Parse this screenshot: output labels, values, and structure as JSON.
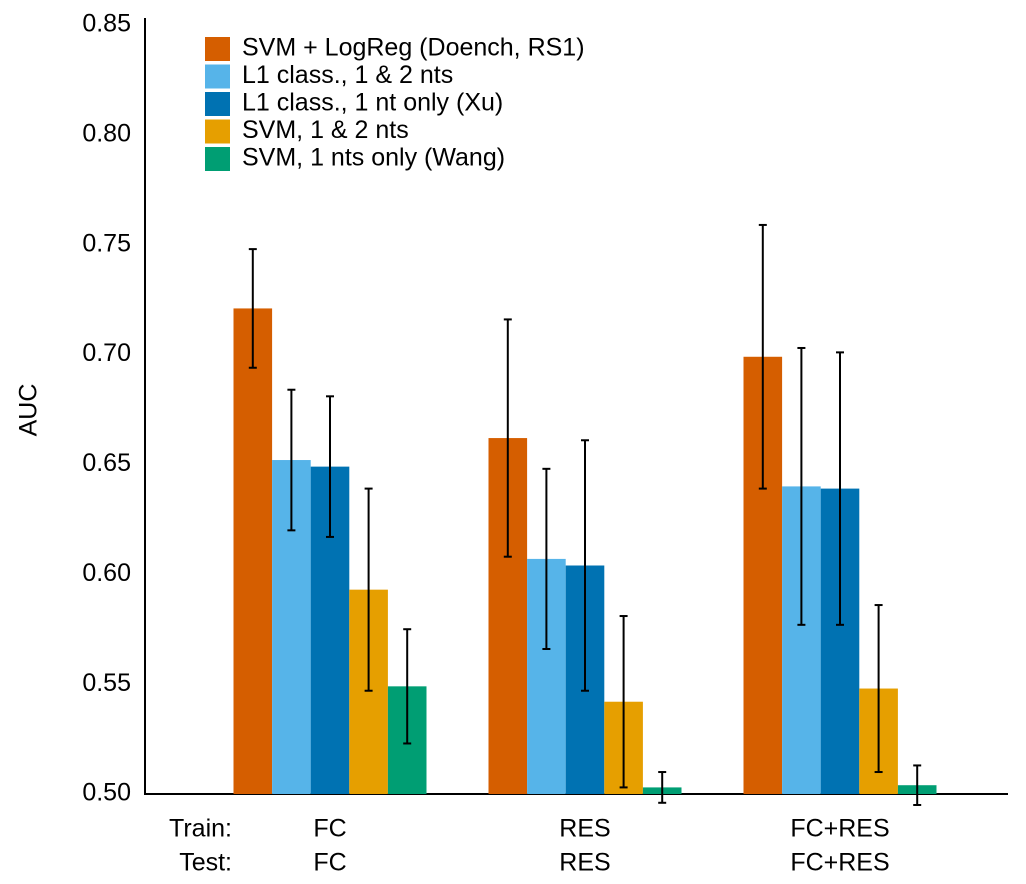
{
  "chart_data": {
    "type": "bar",
    "y_label": "AUC",
    "train_label": "Train:",
    "test_label": "Test:",
    "categories": [
      "FC",
      "RES",
      "FC+RES"
    ],
    "test_categories": [
      "FC",
      "RES",
      "FC+RES"
    ],
    "series": [
      {
        "name": "SVM + LogReg (Doench, RS1)",
        "color": "#d55e00",
        "values": [
          0.721,
          0.662,
          0.699
        ],
        "errors": [
          0.027,
          0.054,
          0.06
        ]
      },
      {
        "name": "L1 class., 1 & 2 nts",
        "color": "#56b4e9",
        "values": [
          0.652,
          0.607,
          0.64
        ],
        "errors": [
          0.032,
          0.041,
          0.063
        ]
      },
      {
        "name": "L1 class., 1 nt only (Xu)",
        "color": "#0072b2",
        "values": [
          0.649,
          0.604,
          0.639
        ],
        "errors": [
          0.032,
          0.057,
          0.062
        ]
      },
      {
        "name": "SVM, 1 & 2 nts",
        "color": "#e69f00",
        "values": [
          0.593,
          0.542,
          0.548
        ],
        "errors": [
          0.046,
          0.039,
          0.038
        ]
      },
      {
        "name": "SVM, 1 nts only (Wang)",
        "color": "#009e73",
        "values": [
          0.549,
          0.503,
          0.504
        ],
        "errors": [
          0.026,
          0.007,
          0.009
        ]
      }
    ],
    "ylim": [
      0.5,
      0.85
    ],
    "yticks": [
      {
        "value": 0.5,
        "label": "0.50"
      },
      0.55,
      {
        "value": 0.6,
        "label": "0.60"
      },
      0.65,
      {
        "value": 0.7,
        "label": "0.70"
      },
      0.75,
      {
        "value": 0.8,
        "label": "0.80"
      },
      0.85
    ],
    "legend": "upper left"
  }
}
